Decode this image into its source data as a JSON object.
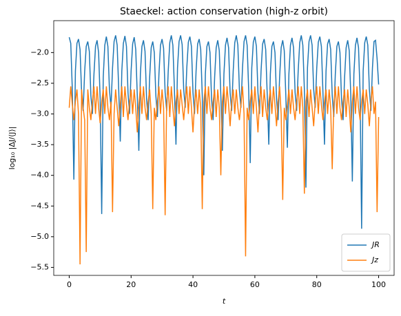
{
  "chart_data": {
    "type": "line",
    "title": "Staeckel: action conservation (high-z orbit)",
    "x_label": "t",
    "y_label": "log₁₀ |ΔJ/⟨J⟩|",
    "x": [
      0,
      0.5,
      1,
      1.5,
      2,
      2.5,
      3,
      3.5,
      4,
      4.5,
      5,
      5.5,
      6,
      6.5,
      7,
      7.5,
      8,
      8.5,
      9,
      9.5,
      10,
      10.5,
      11,
      11.5,
      12,
      12.5,
      13,
      13.5,
      14,
      14.5,
      15,
      15.5,
      16,
      16.5,
      17,
      17.5,
      18,
      18.5,
      19,
      19.5,
      20,
      20.5,
      21,
      21.5,
      22,
      22.5,
      23,
      23.5,
      24,
      24.5,
      25,
      25.5,
      26,
      26.5,
      27,
      27.5,
      28,
      28.5,
      29,
      29.5,
      30,
      30.5,
      31,
      31.5,
      32,
      32.5,
      33,
      33.5,
      34,
      34.5,
      35,
      35.5,
      36,
      36.5,
      37,
      37.5,
      38,
      38.5,
      39,
      39.5,
      40,
      40.5,
      41,
      41.5,
      42,
      42.5,
      43,
      43.5,
      44,
      44.5,
      45,
      45.5,
      46,
      46.5,
      47,
      47.5,
      48,
      48.5,
      49,
      49.5,
      50,
      50.5,
      51,
      51.5,
      52,
      52.5,
      53,
      53.5,
      54,
      54.5,
      55,
      55.5,
      56,
      56.5,
      57,
      57.5,
      58,
      58.5,
      59,
      59.5,
      60,
      60.5,
      61,
      61.5,
      62,
      62.5,
      63,
      63.5,
      64,
      64.5,
      65,
      65.5,
      66,
      66.5,
      67,
      67.5,
      68,
      68.5,
      69,
      69.5,
      70,
      70.5,
      71,
      71.5,
      72,
      72.5,
      73,
      73.5,
      74,
      74.5,
      75,
      75.5,
      76,
      76.5,
      77,
      77.5,
      78,
      78.5,
      79,
      79.5,
      80,
      80.5,
      81,
      81.5,
      82,
      82.5,
      83,
      83.5,
      84,
      84.5,
      85,
      85.5,
      86,
      86.5,
      87,
      87.5,
      88,
      88.5,
      89,
      89.5,
      90,
      90.5,
      91,
      91.5,
      92,
      92.5,
      93,
      93.5,
      94,
      94.5,
      95,
      95.5,
      96,
      96.5,
      97,
      97.5,
      98,
      98.5,
      99,
      99.5,
      100
    ],
    "series": [
      {
        "name": "JR",
        "color": "#1f77b4",
        "values": [
          -1.75,
          -1.85,
          -2.6,
          -4.07,
          -2.3,
          -1.85,
          -1.78,
          -1.95,
          -2.65,
          -2.95,
          -2.3,
          -1.9,
          -1.82,
          -1.98,
          -2.7,
          -3.0,
          -2.35,
          -1.9,
          -1.8,
          -2.0,
          -2.75,
          -4.63,
          -2.4,
          -1.88,
          -1.74,
          -1.9,
          -2.6,
          -2.9,
          -2.25,
          -1.82,
          -1.72,
          -1.88,
          -2.6,
          -3.45,
          -2.3,
          -1.85,
          -1.73,
          -1.9,
          -2.65,
          -3.0,
          -2.3,
          -1.86,
          -1.75,
          -1.95,
          -2.7,
          -3.6,
          -2.35,
          -1.9,
          -1.8,
          -1.98,
          -2.75,
          -3.1,
          -2.4,
          -1.92,
          -1.82,
          -2.0,
          -2.7,
          -3.05,
          -2.35,
          -1.88,
          -1.78,
          -1.93,
          -2.65,
          -2.95,
          -2.3,
          -1.84,
          -1.72,
          -1.88,
          -2.6,
          -3.5,
          -2.25,
          -1.82,
          -1.72,
          -1.87,
          -2.6,
          -2.9,
          -2.25,
          -1.83,
          -1.74,
          -1.9,
          -2.65,
          -3.0,
          -2.3,
          -1.86,
          -1.78,
          -1.95,
          -2.7,
          -4.0,
          -2.35,
          -1.9,
          -1.82,
          -2.0,
          -2.75,
          -3.1,
          -2.4,
          -1.92,
          -1.8,
          -1.97,
          -2.7,
          -3.6,
          -2.35,
          -1.88,
          -1.76,
          -1.92,
          -2.65,
          -2.95,
          -2.3,
          -1.84,
          -1.72,
          -1.88,
          -2.6,
          -2.9,
          -2.25,
          -1.82,
          -1.72,
          -1.88,
          -2.6,
          -3.8,
          -2.25,
          -1.83,
          -1.74,
          -1.9,
          -2.65,
          -3.0,
          -2.3,
          -1.86,
          -1.78,
          -1.95,
          -2.7,
          -3.5,
          -2.35,
          -1.9,
          -1.82,
          -2.0,
          -2.75,
          -3.1,
          -2.4,
          -1.92,
          -1.8,
          -1.97,
          -2.7,
          -3.55,
          -2.35,
          -1.88,
          -1.76,
          -1.92,
          -2.65,
          -2.95,
          -2.3,
          -1.84,
          -1.72,
          -1.88,
          -2.6,
          -4.2,
          -2.25,
          -1.82,
          -1.72,
          -1.88,
          -2.6,
          -2.9,
          -2.25,
          -1.83,
          -1.74,
          -1.9,
          -2.65,
          -3.5,
          -2.3,
          -1.86,
          -1.78,
          -1.95,
          -2.7,
          -3.05,
          -2.35,
          -1.9,
          -1.82,
          -2.0,
          -2.75,
          -3.1,
          -2.4,
          -1.92,
          -1.8,
          -1.97,
          -2.7,
          -4.1,
          -2.35,
          -1.88,
          -1.76,
          -1.92,
          -2.65,
          -4.87,
          -2.3,
          -1.84,
          -1.74,
          -1.88,
          -2.6,
          -2.95,
          -2.25,
          -1.82,
          -1.8,
          -2.1,
          -2.52
        ]
      },
      {
        "name": "Jz",
        "color": "#ff7f0e",
        "values": [
          -2.9,
          -2.55,
          -2.85,
          -3.1,
          -2.8,
          -2.6,
          -3.0,
          -5.45,
          -2.6,
          -2.9,
          -3.1,
          -5.25,
          -2.6,
          -2.9,
          -3.1,
          -2.8,
          -2.55,
          -3.0,
          -2.55,
          -2.9,
          -3.15,
          -2.8,
          -2.6,
          -3.0,
          -2.55,
          -2.9,
          -3.1,
          -2.8,
          -4.6,
          -3.0,
          -2.6,
          -2.9,
          -3.2,
          -2.85,
          -2.55,
          -3.05,
          -2.55,
          -2.85,
          -3.1,
          -2.8,
          -2.6,
          -3.0,
          -2.6,
          -2.9,
          -3.3,
          -2.85,
          -2.55,
          -3.0,
          -2.55,
          -2.9,
          -3.1,
          -2.8,
          -2.6,
          -3.0,
          -4.55,
          -2.9,
          -3.1,
          -2.8,
          -2.55,
          -3.0,
          -2.6,
          -2.9,
          -4.65,
          -2.8,
          -2.55,
          -3.05,
          -2.55,
          -2.9,
          -3.2,
          -2.8,
          -2.6,
          -3.0,
          -2.6,
          -2.85,
          -3.1,
          -2.8,
          -2.55,
          -3.0,
          -2.55,
          -2.9,
          -3.3,
          -2.85,
          -2.6,
          -3.0,
          -2.6,
          -2.9,
          -4.55,
          -2.8,
          -2.55,
          -3.0,
          -2.55,
          -2.9,
          -3.1,
          -2.8,
          -2.6,
          -3.05,
          -2.6,
          -2.9,
          -4.0,
          -2.8,
          -2.55,
          -3.0,
          -2.55,
          -2.85,
          -3.2,
          -2.8,
          -2.6,
          -3.0,
          -2.6,
          -2.9,
          -3.1,
          -2.85,
          -2.55,
          -3.0,
          -5.32,
          -2.9,
          -3.1,
          -2.8,
          -2.6,
          -3.0,
          -2.55,
          -2.9,
          -3.3,
          -2.8,
          -2.55,
          -3.05,
          -2.6,
          -2.9,
          -3.1,
          -2.8,
          -2.6,
          -3.0,
          -2.55,
          -2.85,
          -3.2,
          -2.8,
          -2.55,
          -3.0,
          -4.4,
          -2.9,
          -3.1,
          -2.85,
          -2.6,
          -3.0,
          -2.6,
          -2.9,
          -3.1,
          -2.8,
          -2.55,
          -3.0,
          -2.55,
          -2.9,
          -4.3,
          -2.8,
          -2.6,
          -3.05,
          -2.6,
          -2.9,
          -3.2,
          -2.8,
          -2.55,
          -3.0,
          -2.55,
          -2.85,
          -3.1,
          -2.8,
          -2.6,
          -3.0,
          -2.6,
          -2.9,
          -3.9,
          -2.85,
          -2.55,
          -3.0,
          -2.55,
          -2.9,
          -3.1,
          -2.8,
          -2.6,
          -3.05,
          -2.6,
          -2.9,
          -3.3,
          -2.8,
          -2.55,
          -3.0,
          -2.55,
          -2.9,
          -3.1,
          -2.8,
          -2.6,
          -3.0,
          -2.6,
          -2.85,
          -3.2,
          -2.8,
          -2.55,
          -3.0,
          -2.8,
          -4.6,
          -3.05
        ]
      }
    ],
    "xlim": [
      -5,
      105
    ],
    "ylim": [
      -5.63,
      -1.48
    ],
    "xticks": [
      0,
      20,
      40,
      60,
      80,
      100
    ],
    "yticks": [
      {
        "value": -5.5,
        "label": "−5.5"
      },
      {
        "value": -5,
        "label": "−5.0"
      },
      {
        "value": -4.5,
        "label": "−4.5"
      },
      {
        "value": -4,
        "label": "−4.0"
      },
      {
        "value": -3.5,
        "label": "−3.5"
      },
      {
        "value": -3,
        "label": "−3.0"
      },
      {
        "value": -2.5,
        "label": "−2.5"
      },
      {
        "value": -2,
        "label": "−2.0"
      }
    ],
    "legend": "lower right",
    "grid": false
  }
}
